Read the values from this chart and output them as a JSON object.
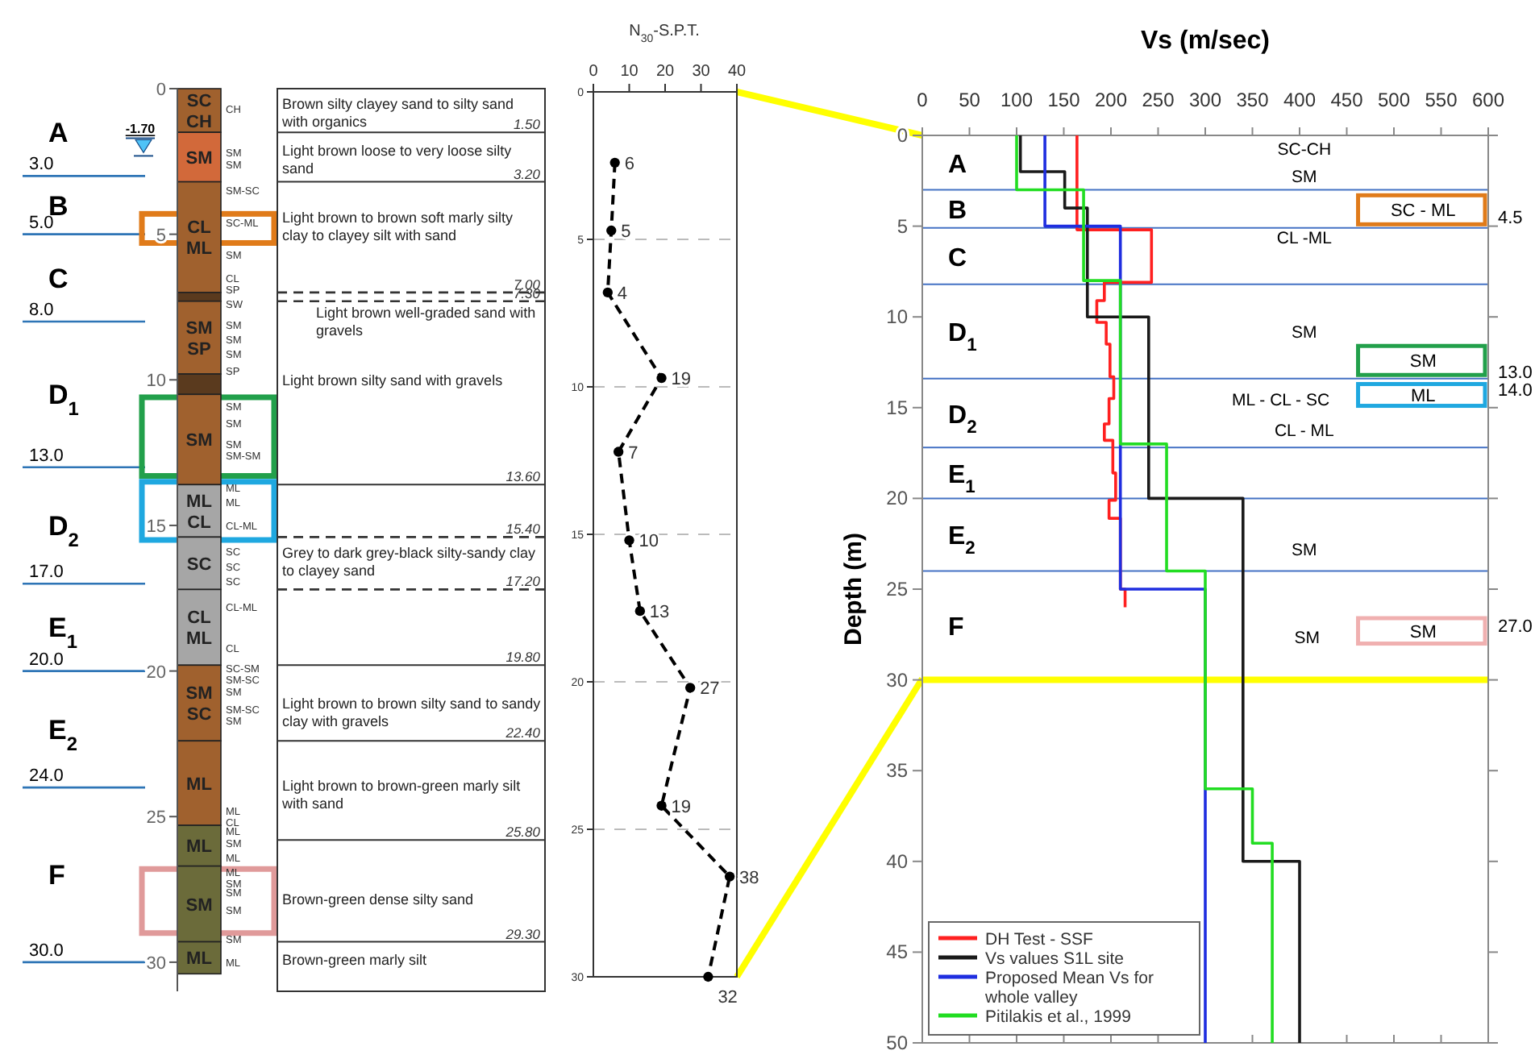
{
  "chart_data": [
    {
      "type": "bar",
      "stacked": true,
      "categories": [
        null
      ],
      "ylim": [
        31,
        0
      ],
      "yticks": [
        0,
        5,
        10,
        15,
        20,
        25,
        30
      ],
      "series": [
        {
          "name": "SC CH",
          "color": "#a0612e",
          "values": [
            1.5
          ]
        },
        {
          "name": "SM",
          "color": "#d2693a",
          "values": [
            1.7
          ]
        },
        {
          "name": "CL ML",
          "color": "#a0612e",
          "values": [
            3.8
          ]
        },
        {
          "color": "#5a3a1e",
          "values": [
            0.3
          ]
        },
        {
          "name": "SM SP",
          "color": "#a0612e",
          "values": [
            2.5
          ]
        },
        {
          "color": "#5a3a1e",
          "values": [
            0.7
          ]
        },
        {
          "name": "SM",
          "color": "#a0612e",
          "values": [
            3.1
          ]
        },
        {
          "name": "ML CL",
          "color": "#a6a6a6",
          "values": [
            1.8
          ]
        },
        {
          "name": "SC",
          "color": "#a6a6a6",
          "values": [
            1.8
          ]
        },
        {
          "name": "CL ML",
          "color": "#a6a6a6",
          "values": [
            2.6
          ]
        },
        {
          "name": "SM SC",
          "color": "#a0612e",
          "values": [
            2.6
          ]
        },
        {
          "name": "ML",
          "color": "#a0612e",
          "values": [
            2.9
          ]
        },
        {
          "name": "ML",
          "color": "#6b6b3a",
          "values": [
            1.4
          ]
        },
        {
          "name": "SM",
          "color": "#6b6b3a",
          "values": [
            2.6
          ]
        },
        {
          "name": "ML",
          "color": "#6b6b3a",
          "values": [
            1.1
          ]
        }
      ],
      "ref_lines": [
        {
          "axis": "y",
          "value": 3,
          "label": "3.0",
          "color": "#2e75b6"
        },
        {
          "axis": "y",
          "value": 5,
          "label": "5.0",
          "color": "#2e75b6"
        },
        {
          "axis": "y",
          "value": 8,
          "label": "8.0",
          "color": "#2e75b6"
        },
        {
          "axis": "y",
          "value": 13,
          "label": "13.0",
          "color": "#2e75b6"
        },
        {
          "axis": "y",
          "value": 17,
          "label": "17.0",
          "color": "#2e75b6"
        },
        {
          "axis": "y",
          "value": 20,
          "label": "20.0",
          "color": "#2e75b6"
        },
        {
          "axis": "y",
          "value": 24,
          "label": "24.0",
          "color": "#2e75b6"
        },
        {
          "axis": "y",
          "value": 30,
          "label": "30.0",
          "color": "#2e75b6"
        },
        {
          "axis": "y",
          "value": 1.5,
          "label": "1.50"
        },
        {
          "axis": "y",
          "value": 3.2,
          "label": "3.20"
        },
        {
          "axis": "y",
          "value": 7.0,
          "label": "7.00",
          "line_style": "dashed"
        },
        {
          "axis": "y",
          "value": 7.3,
          "label": "7.30",
          "line_style": "dashed"
        },
        {
          "axis": "y",
          "value": 13.6,
          "label": "13.60"
        },
        {
          "axis": "y",
          "value": 15.4,
          "label": "15.40",
          "line_style": "dashed"
        },
        {
          "axis": "y",
          "value": 17.2,
          "label": "17.20",
          "line_style": "dashed"
        },
        {
          "axis": "y",
          "value": 19.8,
          "label": "19.80"
        },
        {
          "axis": "y",
          "value": 22.4,
          "label": "22.40"
        },
        {
          "axis": "y",
          "value": 25.8,
          "label": "25.80"
        },
        {
          "axis": "y",
          "value": 29.3,
          "label": "29.30"
        }
      ],
      "annotations": [
        "A",
        "B",
        "C",
        "D$_{1}$",
        "D$_{2}$",
        "E$_{1}$",
        "E$_{2}$",
        "F",
        "-1.70",
        "CH",
        "SM",
        "SM",
        "SM-SC",
        "SC-ML",
        "SM",
        "CL",
        "SP",
        "SW",
        "SM",
        "SM",
        "SM",
        "SP",
        "SM",
        "SM",
        "SM",
        "SM-SM",
        "ML",
        "ML",
        "CL-ML",
        "SC",
        "SC",
        "SC",
        "CL-ML",
        "CL",
        "SC-SM",
        "SM-SC",
        "SM",
        "SM-SC",
        "SM",
        "ML",
        "CL",
        "ML",
        "SM",
        "ML",
        "ML",
        "SM",
        "SM",
        "SM",
        "SM",
        "ML",
        "Brown silty clayey sand to silty sand with organics",
        "Light brown loose to very loose silty sand",
        "Light brown to brown soft marly silty clay to clayey silt with sand",
        "Light brown well-graded sand with gravels",
        "Light brown silty sand with gravels",
        "Grey to dark grey-black silty-sandy clay to clayey sand",
        "Light brown to brown silty sand to sandy clay with gravels",
        "Light brown to brown-green marly silt with sand",
        "Brown-green dense silty sand",
        "Brown-green marly silt"
      ]
    },
    {
      "type": "line",
      "orientation": "horizontal",
      "title": "N$_{30}$-S.P.T.",
      "x": [
        2.4,
        4.7,
        6.8,
        9.7,
        12.2,
        15.2,
        17.6,
        20.2,
        24.2,
        26.6,
        30
      ],
      "values": [
        6,
        5,
        4,
        19,
        7,
        10,
        13,
        27,
        19,
        38,
        32
      ],
      "data_labels": true,
      "marker": "circle",
      "line_style": "dashed",
      "color": "#000000",
      "xlim": [
        0,
        40
      ],
      "xticks": [
        0,
        10,
        20,
        30,
        40
      ],
      "ylim": [
        30,
        0
      ],
      "yticks": [
        0,
        5,
        10,
        15,
        20,
        25,
        30
      ],
      "grid": "y"
    },
    {
      "type": "step",
      "orientation": "horizontal",
      "title": "Vs (m/sec)",
      "ylabel": "Depth (m)",
      "xlim": [
        0,
        600
      ],
      "xticks": [
        0,
        50,
        100,
        150,
        200,
        250,
        300,
        350,
        400,
        450,
        500,
        550,
        600
      ],
      "ylim": [
        50,
        0
      ],
      "yticks": [
        0,
        5,
        10,
        15,
        20,
        25,
        30,
        35,
        40,
        45,
        50
      ],
      "legend": "bottom left",
      "series": [
        {
          "name": "DH Test - SSF",
          "color": "#ff2020",
          "x": [
            0,
            5.2,
            8.1,
            9.1,
            10.3,
            11.5,
            13.3,
            14.5,
            15.9,
            16.8,
            18.6,
            20.1,
            21.1,
            25.0,
            26.0
          ],
          "values": [
            164,
            243,
            193,
            185,
            195,
            199,
            203,
            198,
            193,
            202,
            205,
            198,
            210,
            215,
            215
          ]
        },
        {
          "name": "Vs values S1L site",
          "color": "#1a1a1a",
          "x": [
            0,
            2,
            4,
            10,
            20,
            40,
            50
          ],
          "values": [
            104,
            151,
            175,
            240,
            340,
            400,
            400
          ]
        },
        {
          "name": "Proposed Mean Vs for whole valley",
          "color": "#1f2ee0",
          "x": [
            0,
            5,
            25,
            50
          ],
          "values": [
            130,
            210,
            300,
            300
          ]
        },
        {
          "name": "Pitilakis et al., 1999",
          "color": "#22dd22",
          "x": [
            0,
            3,
            8,
            17,
            24,
            36,
            39,
            50
          ],
          "values": [
            100,
            171,
            210,
            259,
            300,
            350,
            371,
            371
          ]
        }
      ],
      "ref_lines": [
        {
          "axis": "y",
          "value": 3,
          "color": "#4472c4"
        },
        {
          "axis": "y",
          "value": 5.1,
          "color": "#4472c4"
        },
        {
          "axis": "y",
          "value": 8.2,
          "color": "#4472c4"
        },
        {
          "axis": "y",
          "value": 13.4,
          "color": "#4472c4"
        },
        {
          "axis": "y",
          "value": 17.2,
          "color": "#4472c4"
        },
        {
          "axis": "y",
          "value": 20,
          "color": "#4472c4"
        },
        {
          "axis": "y",
          "value": 24,
          "color": "#4472c4"
        },
        {
          "axis": "y",
          "value": 30,
          "color": "#ffff00"
        }
      ],
      "annotations": [
        "A",
        "B",
        "C",
        "D$_{1}$",
        "D$_{2}$",
        "E$_{1}$",
        "E$_{2}$",
        "F",
        "SC-CH",
        "SM",
        "CL -ML",
        "SM",
        "ML - CL - SC",
        "CL - ML",
        "SM",
        "SM",
        "SC - ML",
        "SM",
        "ML",
        "SM",
        "4.5",
        "13.0",
        "14.0",
        "27.0"
      ]
    }
  ]
}
